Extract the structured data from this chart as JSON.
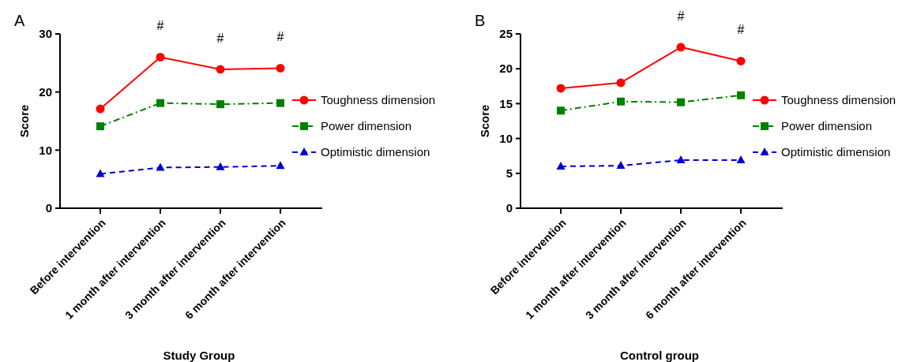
{
  "chart_data": [
    {
      "type": "line",
      "xlabel": "Study Group",
      "ylabel": "Score",
      "categories": [
        "Before intervention",
        "1 month after intervention",
        "3 month after intervention",
        "6 month after intervention"
      ],
      "series": [
        {
          "name": "Toughness dimension",
          "color": "#ff0000",
          "marker": "circle",
          "line_style": "solid",
          "values": [
            17.1,
            26.0,
            23.9,
            24.1
          ]
        },
        {
          "name": "Power dimension",
          "color": "#008000",
          "marker": "square",
          "line_style": "dashed",
          "values": [
            14.1,
            18.1,
            17.9,
            18.1
          ]
        },
        {
          "name": "Optimistic dimension",
          "color": "#0000cc",
          "marker": "triangle",
          "line_style": "dashed",
          "values": [
            5.9,
            7.0,
            7.1,
            7.3
          ]
        }
      ],
      "ylim": [
        0,
        30
      ],
      "yticks": [
        0,
        10,
        20,
        30
      ],
      "grid": false,
      "legend": "right",
      "annotations": [
        "A",
        {
          "text": "#",
          "x": "1 month after intervention",
          "y": 26.0
        },
        {
          "text": "#",
          "x": "3 month after intervention",
          "y": 23.9
        },
        {
          "text": "#",
          "x": "6 month after intervention",
          "y": 24.1
        }
      ]
    },
    {
      "type": "line",
      "xlabel": "Control group",
      "ylabel": "Score",
      "categories": [
        "Before intervention",
        "1 month after intervention",
        "3 month after intervention",
        "6 month after intervention"
      ],
      "series": [
        {
          "name": "Toughness dimension",
          "color": "#ff0000",
          "marker": "circle",
          "line_style": "solid",
          "values": [
            17.2,
            18.0,
            23.1,
            21.1
          ]
        },
        {
          "name": "Power dimension",
          "color": "#008000",
          "marker": "square",
          "line_style": "dashed",
          "values": [
            14.0,
            15.3,
            15.2,
            16.2
          ]
        },
        {
          "name": "Optimistic dimension",
          "color": "#0000cc",
          "marker": "triangle",
          "line_style": "dashed",
          "values": [
            6.0,
            6.1,
            6.9,
            6.9
          ]
        }
      ],
      "ylim": [
        0,
        25
      ],
      "yticks": [
        0,
        5,
        10,
        15,
        20,
        25
      ],
      "grid": false,
      "legend": "right",
      "annotations": [
        "B",
        {
          "text": "#",
          "x": "3 month after intervention",
          "y": 23.1
        },
        {
          "text": "#",
          "x": "6 month after intervention",
          "y": 21.1
        }
      ]
    }
  ]
}
